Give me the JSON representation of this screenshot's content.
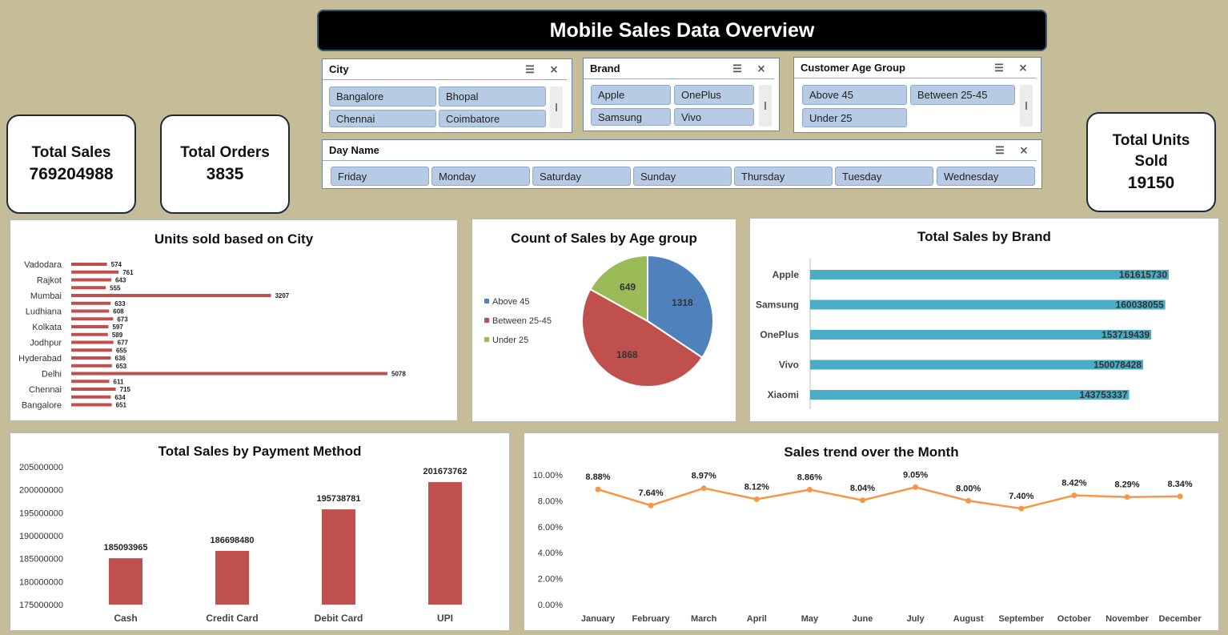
{
  "header": {
    "title": "Mobile Sales Data Overview"
  },
  "kpis": {
    "total_sales": {
      "label": "Total Sales",
      "value": "769204988"
    },
    "total_orders": {
      "label": "Total Orders",
      "value": "3835"
    },
    "total_units": {
      "label1": "Total Units",
      "label2": "Sold",
      "value": "19150"
    }
  },
  "slicers": {
    "city": {
      "title": "City",
      "items": [
        "Bangalore",
        "Bhopal",
        "Chennai",
        "Coimbatore"
      ]
    },
    "brand": {
      "title": "Brand",
      "items": [
        "Apple",
        "OnePlus",
        "Samsung",
        "Vivo"
      ]
    },
    "age": {
      "title": "Customer Age Group",
      "items": [
        "Above 45",
        "Between 25-45",
        "Under 25"
      ]
    },
    "day": {
      "title": "Day Name",
      "items": [
        "Friday",
        "Monday",
        "Saturday",
        "Sunday",
        "Thursday",
        "Tuesday",
        "Wednesday"
      ]
    }
  },
  "colors": {
    "red": "#c0504d",
    "blue": "#4f81bd",
    "green": "#9bbb59",
    "teal": "#4bacc6",
    "orange": "#f79646"
  },
  "chart_data": [
    {
      "id": "city",
      "type": "bar",
      "orientation": "horizontal",
      "title": "Units sold based on City",
      "category_labels_shown": [
        "Vadodara",
        "Rajkot",
        "Mumbai",
        "Ludhiana",
        "Kolkata",
        "Jodhpur",
        "Hyderabad",
        "Delhi",
        "Chennai",
        "Bangalore"
      ],
      "values": [
        574,
        761,
        643,
        555,
        3207,
        633,
        608,
        673,
        597,
        589,
        677,
        655,
        636,
        653,
        5078,
        611,
        715,
        634,
        651
      ],
      "labeled_index": [
        0,
        2,
        4,
        6,
        8,
        10,
        12,
        14,
        16,
        18
      ],
      "color": "#c0504d",
      "grid": false
    },
    {
      "id": "age",
      "type": "pie",
      "title": "Count of Sales by Age group",
      "slices": [
        {
          "name": "Above 45",
          "value": 1318,
          "color": "#4f81bd"
        },
        {
          "name": "Between 25-45",
          "value": 1868,
          "color": "#c0504d"
        },
        {
          "name": "Under 25",
          "value": 649,
          "color": "#9bbb59"
        }
      ],
      "legend": "left"
    },
    {
      "id": "brand",
      "type": "bar",
      "orientation": "horizontal",
      "title": "Total Sales by Brand",
      "categories": [
        "Apple",
        "Samsung",
        "OnePlus",
        "Vivo",
        "Xiaomi"
      ],
      "values": [
        161615730,
        160038055,
        153719439,
        150078428,
        143753337
      ],
      "color": "#4bacc6",
      "grid": false
    },
    {
      "id": "payment",
      "type": "bar",
      "title": "Total Sales by Payment Method",
      "categories": [
        "Cash",
        "Credit Card",
        "Debit Card",
        "UPI"
      ],
      "values": [
        185093965,
        186698480,
        195738781,
        201673762
      ],
      "ylim": [
        175000000,
        205000000
      ],
      "yticks": [
        "175000000",
        "180000000",
        "185000000",
        "190000000",
        "195000000",
        "200000000",
        "205000000"
      ],
      "color": "#c0504d",
      "grid": false
    },
    {
      "id": "month",
      "type": "line",
      "title": "Sales trend over the Month",
      "categories": [
        "January",
        "February",
        "March",
        "April",
        "May",
        "June",
        "July",
        "August",
        "September",
        "October",
        "November",
        "December"
      ],
      "values": [
        8.88,
        7.64,
        8.97,
        8.12,
        8.86,
        8.04,
        9.05,
        8.0,
        7.4,
        8.42,
        8.29,
        8.34
      ],
      "value_labels": [
        "8.88%",
        "7.64%",
        "8.97%",
        "8.12%",
        "8.86%",
        "8.04%",
        "9.05%",
        "8.00%",
        "7.40%",
        "8.42%",
        "8.29%",
        "8.34%"
      ],
      "ylim": [
        0,
        10
      ],
      "yticks": [
        "0.00%",
        "2.00%",
        "4.00%",
        "6.00%",
        "8.00%",
        "10.00%"
      ],
      "color": "#f79646",
      "grid": false
    }
  ]
}
